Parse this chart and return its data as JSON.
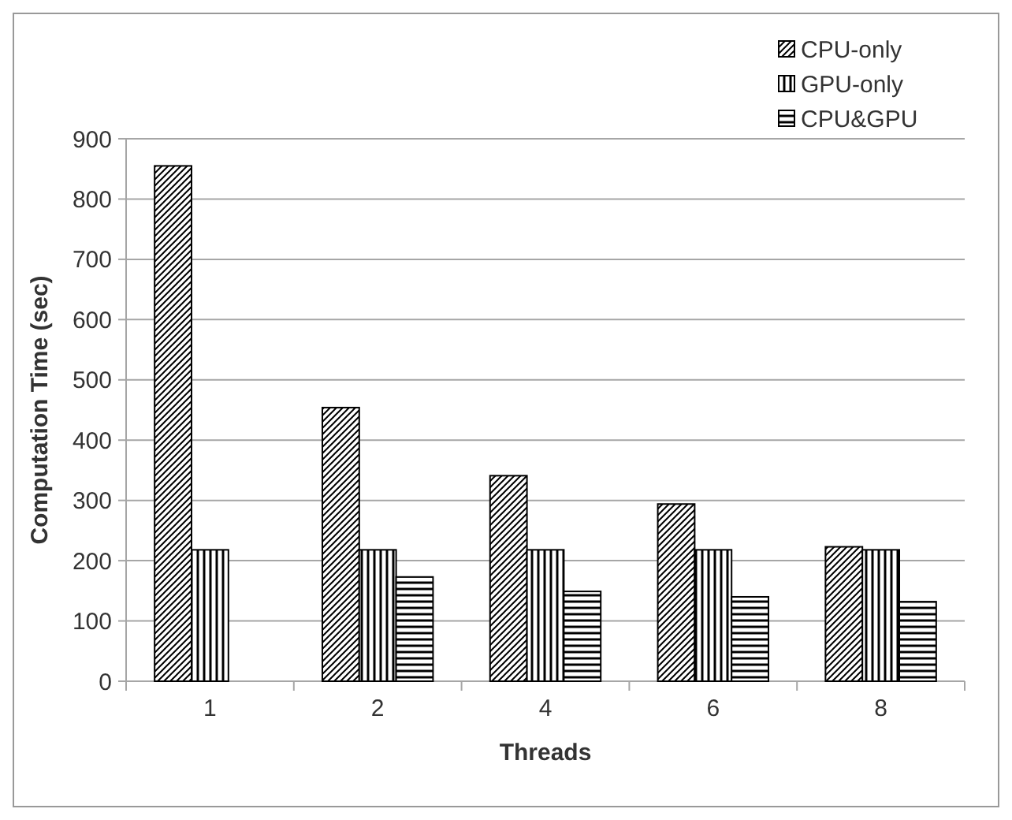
{
  "chart_data": {
    "type": "bar",
    "xlabel": "Threads",
    "ylabel": "Computation Time (sec)",
    "categories": [
      "1",
      "2",
      "4",
      "6",
      "8"
    ],
    "series": [
      {
        "name": "CPU-only",
        "color": "#000000",
        "values": [
          855,
          454,
          341,
          294,
          223
        ]
      },
      {
        "name": "GPU-only",
        "color": "#000000",
        "values": [
          218,
          218,
          218,
          218,
          218
        ]
      },
      {
        "name": "CPU&GPU",
        "color": "#000000",
        "values": [
          null,
          173,
          149,
          140,
          132
        ]
      }
    ],
    "ylim": [
      0,
      900
    ],
    "yticks": [
      0,
      100,
      200,
      300,
      400,
      500,
      600,
      700,
      800,
      900
    ],
    "grid": "y",
    "legend": "top right"
  }
}
